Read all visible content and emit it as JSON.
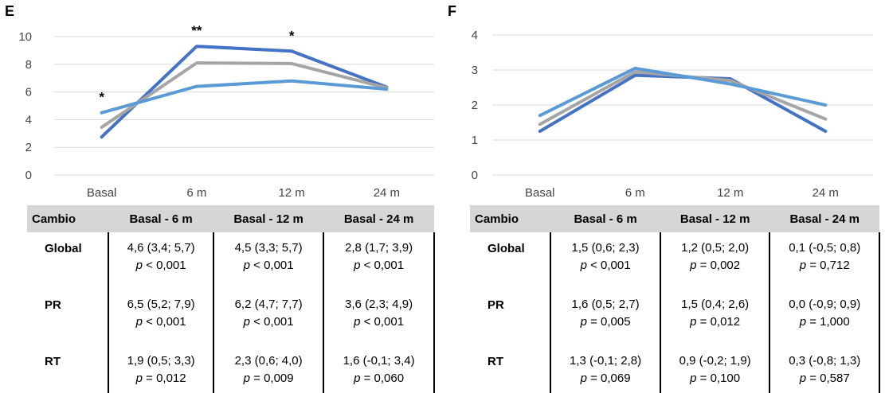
{
  "chart_data": [
    {
      "panel": "E",
      "type": "line",
      "categories": [
        "Basal",
        "6 m",
        "12 m",
        "24 m"
      ],
      "ylim": [
        0,
        10
      ],
      "yticks": [
        0,
        2,
        4,
        6,
        8,
        10
      ],
      "grid": true,
      "series": [
        {
          "color": "#4472c4",
          "values": [
            2.75,
            9.3,
            8.95,
            6.35
          ]
        },
        {
          "color": "#a5a5a5",
          "values": [
            3.45,
            8.1,
            8.05,
            6.3
          ]
        },
        {
          "color": "#5b9bd5",
          "values": [
            4.5,
            6.4,
            6.8,
            6.2
          ]
        }
      ],
      "annotations": [
        {
          "category": "Basal",
          "text": "*"
        },
        {
          "category": "6 m",
          "text": "**"
        },
        {
          "category": "12 m",
          "text": "*"
        }
      ]
    },
    {
      "panel": "F",
      "type": "line",
      "categories": [
        "Basal",
        "6 m",
        "12 m",
        "24 m"
      ],
      "ylim": [
        0,
        4
      ],
      "yticks": [
        0,
        1,
        2,
        3,
        4
      ],
      "grid": true,
      "series": [
        {
          "color": "#4472c4",
          "values": [
            1.25,
            2.85,
            2.75,
            1.25
          ]
        },
        {
          "color": "#a5a5a5",
          "values": [
            1.45,
            2.95,
            2.7,
            1.6
          ]
        },
        {
          "color": "#5b9bd5",
          "values": [
            1.7,
            3.05,
            2.6,
            2.0
          ]
        }
      ],
      "annotations": []
    }
  ],
  "panels": {
    "E": {
      "label": "E",
      "table": {
        "headers": [
          "Cambio",
          "Basal - 6 m",
          "Basal - 12 m",
          "Basal - 24 m"
        ],
        "rows": [
          {
            "label": "Global",
            "cells": [
              {
                "ci": "4,6 (3,4; 5,7)",
                "p": "< 0,001"
              },
              {
                "ci": "4,5 (3,3; 5,7)",
                "p": "< 0,001"
              },
              {
                "ci": "2,8 (1,7; 3,9)",
                "p": "< 0,001"
              }
            ]
          },
          {
            "label": "PR",
            "cells": [
              {
                "ci": "6,5 (5,2; 7,9)",
                "p": "< 0,001"
              },
              {
                "ci": "6,2 (4,7; 7,7)",
                "p": "< 0,001"
              },
              {
                "ci": "3,6 (2,3; 4,9)",
                "p": "< 0,001"
              }
            ]
          },
          {
            "label": "RT",
            "cells": [
              {
                "ci": "1,9 (0,5; 3,3)",
                "p": "= 0,012"
              },
              {
                "ci": "2,3 (0,6; 4,0)",
                "p": "= 0,009"
              },
              {
                "ci": "1,6 (-0,1; 3,4)",
                "p": "= 0,060"
              }
            ]
          }
        ]
      }
    },
    "F": {
      "label": "F",
      "table": {
        "headers": [
          "Cambio",
          "Basal - 6 m",
          "Basal - 12 m",
          "Basal - 24 m"
        ],
        "rows": [
          {
            "label": "Global",
            "cells": [
              {
                "ci": "1,5 (0,6; 2,3)",
                "p": "< 0,001"
              },
              {
                "ci": "1,2 (0,5; 2,0)",
                "p": "= 0,002"
              },
              {
                "ci": "0,1 (-0,5; 0,8)",
                "p": "= 0,712"
              }
            ]
          },
          {
            "label": "PR",
            "cells": [
              {
                "ci": "1,6 (0,5; 2,7)",
                "p": "= 0,005"
              },
              {
                "ci": "1,5 (0,4; 2,6)",
                "p": "= 0,012"
              },
              {
                "ci": "0,0 (-0,9; 0,9)",
                "p": "= 1,000"
              }
            ]
          },
          {
            "label": "RT",
            "cells": [
              {
                "ci": "1,3 (-0,1; 2,8)",
                "p": "= 0,069"
              },
              {
                "ci": "0,9 (-0,2; 1,9)",
                "p": "= 0,100"
              },
              {
                "ci": "0,3 (-0,8; 1,3)",
                "p": "= 0,587"
              }
            ]
          }
        ]
      }
    },
    "p_symbol": "p"
  }
}
